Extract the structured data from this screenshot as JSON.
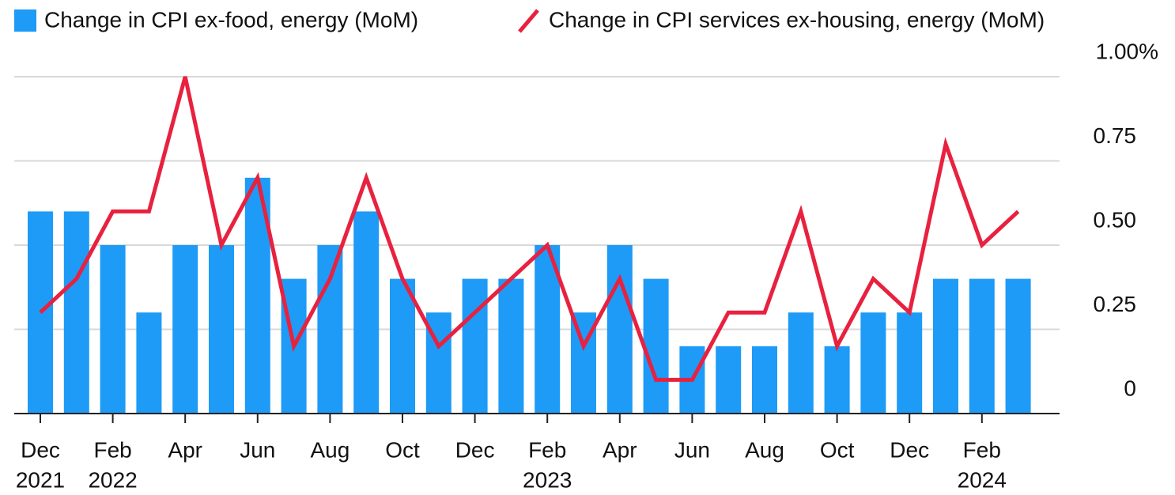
{
  "chart_data": {
    "type": "bar_line",
    "categories": [
      "Dec",
      null,
      "Feb",
      null,
      "Apr",
      null,
      "Jun",
      null,
      "Aug",
      null,
      "Oct",
      null,
      "Dec",
      null,
      "Feb",
      null,
      "Apr",
      null,
      "Jun",
      null,
      "Aug",
      null,
      "Oct",
      null,
      "Dec",
      null,
      "Feb",
      null
    ],
    "category_years": [
      "2021",
      null,
      "2022",
      null,
      null,
      null,
      null,
      null,
      null,
      null,
      null,
      null,
      null,
      null,
      "2023",
      null,
      null,
      null,
      null,
      null,
      null,
      null,
      null,
      null,
      null,
      null,
      "2024",
      null
    ],
    "series": [
      {
        "name": "Change in CPI ex-food, energy (MoM)",
        "type": "bar",
        "color": "#1d9bf6",
        "values": [
          0.6,
          0.6,
          0.5,
          0.3,
          0.5,
          0.5,
          0.7,
          0.4,
          0.5,
          0.6,
          0.4,
          0.3,
          0.4,
          0.4,
          0.5,
          0.3,
          0.5,
          0.4,
          0.2,
          0.2,
          0.2,
          0.3,
          0.2,
          0.3,
          0.3,
          0.4,
          0.4,
          0.4
        ]
      },
      {
        "name": "Change in CPI services ex-housing, energy (MoM)",
        "type": "line",
        "color": "#e8213f",
        "values": [
          0.3,
          0.4,
          0.6,
          0.6,
          1.0,
          0.5,
          0.7,
          0.2,
          0.4,
          0.7,
          0.4,
          0.2,
          0.3,
          0.4,
          0.5,
          0.2,
          0.4,
          0.1,
          0.1,
          0.3,
          0.3,
          0.6,
          0.2,
          0.4,
          0.3,
          0.8,
          0.5,
          0.6
        ]
      }
    ],
    "ylim": [
      0,
      1.0
    ],
    "yticks": [
      0,
      0.25,
      {
        "value": 0.5,
        "label": "0.50"
      },
      0.75,
      {
        "value": 1.0,
        "label": "1.00%"
      }
    ],
    "grid": true
  }
}
